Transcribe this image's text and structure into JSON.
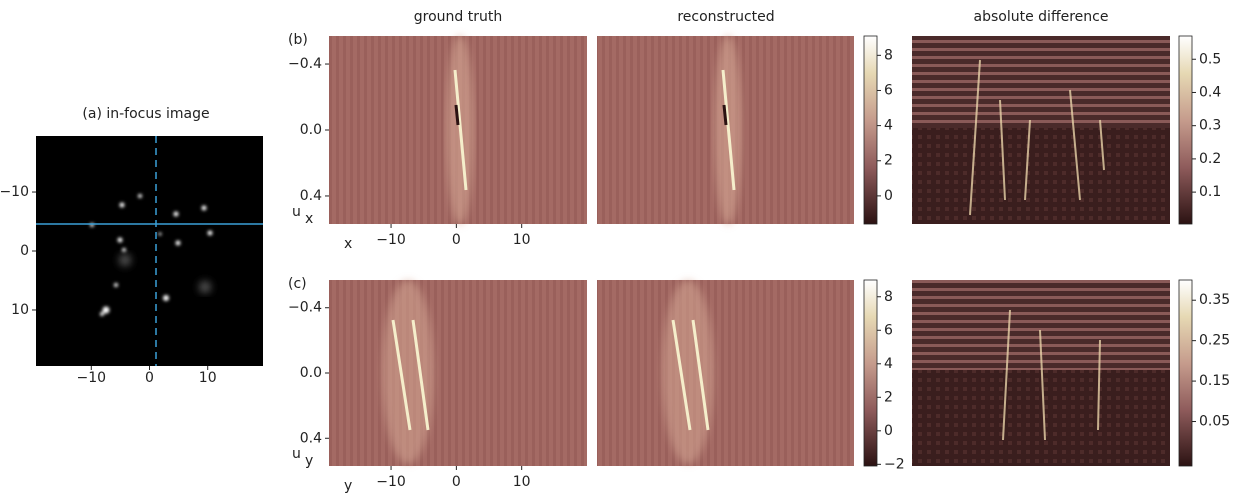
{
  "columns": [
    "ground truth",
    "reconstructed",
    "absolute difference"
  ],
  "panel_a": {
    "title": "(a) in-focus image",
    "xlim": [
      -19.5,
      19.5
    ],
    "ylim": [
      -19.5,
      19.5
    ],
    "xticks": [
      {
        "value": -10,
        "label": "−10"
      },
      0,
      10
    ],
    "yticks": [
      {
        "value": -10,
        "label": "−10"
      },
      0,
      10
    ]
  },
  "rows": [
    {
      "label": "(b)",
      "ylabel": "u",
      "ylabel_sub": "x",
      "xlabel": "x",
      "xlim": [
        -19.5,
        20
      ],
      "ylim": [
        -0.57,
        0.57
      ],
      "xticks": [
        {
          "value": -10,
          "label": "−10"
        },
        0,
        10
      ],
      "yticks": [
        {
          "value": -0.4,
          "label": "−0.4"
        },
        {
          "value": 0,
          "label": "0.0"
        },
        0.4
      ],
      "colorbars": [
        {
          "clim": [
            -1.6,
            9.1
          ],
          "ticks": [
            0,
            2,
            4,
            6,
            8
          ]
        },
        {
          "clim": [
            0.004,
            0.57
          ],
          "ticks": [
            0.1,
            0.2,
            0.3,
            0.4,
            0.5
          ]
        }
      ]
    },
    {
      "label": "(c)",
      "ylabel": "u",
      "ylabel_sub": "y",
      "xlabel": "y",
      "xlim": [
        -19.5,
        20
      ],
      "ylim": [
        -0.57,
        0.57
      ],
      "xticks": [
        {
          "value": -10,
          "label": "−10"
        },
        0,
        10
      ],
      "yticks": [
        {
          "value": -0.4,
          "label": "−0.4"
        },
        {
          "value": 0,
          "label": "0.0"
        },
        0.4
      ],
      "colorbars": [
        {
          "clim": [
            -2.1,
            9.0
          ],
          "ticks": [
            {
              "value": -2,
              "label": "−2"
            },
            0,
            2,
            4,
            6,
            8
          ]
        },
        {
          "clim": [
            -0.06,
            0.4
          ],
          "ticks": [
            0.05,
            0.15,
            0.25,
            0.35
          ]
        }
      ]
    }
  ]
}
